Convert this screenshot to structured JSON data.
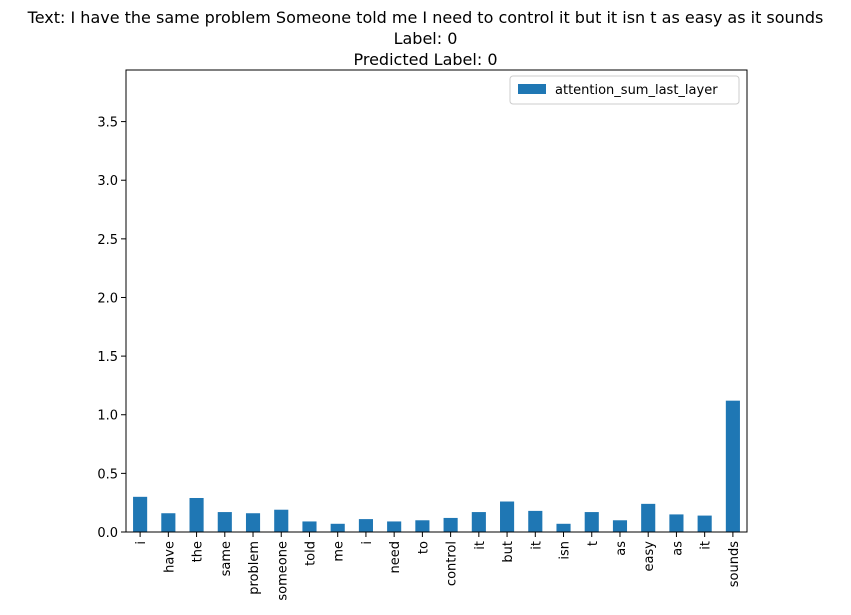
{
  "title_lines": [
    "Text: I have the same problem Someone told me I need to control it but it isn t as easy as it sounds",
    "Label: 0",
    "Predicted Label: 0"
  ],
  "chart_data": {
    "type": "bar",
    "categories": [
      "i",
      "have",
      "the",
      "same",
      "problem",
      "someone",
      "told",
      "me",
      "i",
      "need",
      "to",
      "control",
      "it",
      "but",
      "it",
      "isn",
      "t",
      "as",
      "easy",
      "as",
      "it",
      "sounds"
    ],
    "series": [
      {
        "name": "attention_sum_last_layer",
        "color": "#1f77b4",
        "values": [
          0.3,
          0.16,
          0.29,
          0.17,
          0.16,
          0.19,
          0.09,
          0.07,
          0.11,
          0.09,
          0.1,
          0.12,
          0.17,
          0.26,
          0.18,
          0.07,
          0.17,
          0.1,
          0.24,
          0.15,
          0.14,
          1.12
        ]
      }
    ],
    "xlabel": "",
    "ylabel": "",
    "ylim": [
      0,
      3.94
    ],
    "yticks": [
      0.0,
      0.5,
      1.0,
      1.5,
      2.0,
      2.5,
      3.0,
      3.5
    ],
    "ytick_labels": [
      "0.0",
      "0.5",
      "1.0",
      "1.5",
      "2.0",
      "2.5",
      "3.0",
      "3.5"
    ],
    "grid": false,
    "legend": "top-right"
  }
}
